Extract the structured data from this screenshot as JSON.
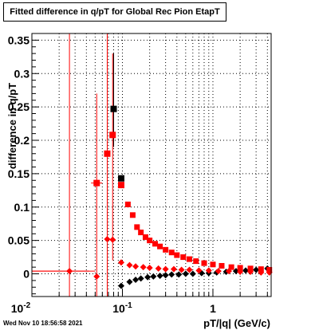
{
  "chart_data": {
    "type": "scatter",
    "title": "Fitted difference in q/pT for Global Rec Pion EtapT",
    "xlabel": "pT/|q| (GeV/c)",
    "ylabel": "difference in q/pT",
    "xscale": "log",
    "xlim": [
      0.01,
      4.4
    ],
    "ylim": [
      -0.034,
      0.36
    ],
    "grid": true,
    "x_tick_labels": [
      "10^-2",
      "10^-1",
      "1"
    ],
    "y_tick_labels": [
      "0",
      "0.05",
      "0.1",
      "0.15",
      "0.2",
      "0.25",
      "0.3",
      "0.35"
    ],
    "series": [
      {
        "marker": "square",
        "color": "#000000",
        "points": [
          {
            "x": 0.08,
            "y": 0.247
          },
          {
            "x": 0.097,
            "y": 0.143
          }
        ]
      },
      {
        "marker": "diamond",
        "color": "#000000",
        "points": [
          {
            "x": 0.097,
            "y": -0.018
          },
          {
            "x": 0.12,
            "y": -0.012
          },
          {
            "x": 0.14,
            "y": -0.009
          },
          {
            "x": 0.16,
            "y": -0.007
          },
          {
            "x": 0.19,
            "y": -0.005
          },
          {
            "x": 0.22,
            "y": -0.004
          },
          {
            "x": 0.26,
            "y": -0.003
          },
          {
            "x": 0.3,
            "y": -0.002
          },
          {
            "x": 0.35,
            "y": -0.001
          },
          {
            "x": 0.42,
            "y": -0.001
          },
          {
            "x": 0.5,
            "y": 0.0
          },
          {
            "x": 0.6,
            "y": 0.0
          },
          {
            "x": 0.75,
            "y": 0.001
          },
          {
            "x": 0.9,
            "y": 0.001
          },
          {
            "x": 1.1,
            "y": 0.002
          },
          {
            "x": 1.4,
            "y": 0.003
          },
          {
            "x": 1.8,
            "y": 0.004
          },
          {
            "x": 2.3,
            "y": 0.005
          },
          {
            "x": 3.0,
            "y": 0.006
          },
          {
            "x": 4.0,
            "y": 0.008
          }
        ]
      },
      {
        "marker": "square",
        "color": "#ff0000",
        "points": [
          {
            "x": 0.052,
            "y": 0.136
          },
          {
            "x": 0.068,
            "y": 0.18
          },
          {
            "x": 0.078,
            "y": 0.208
          },
          {
            "x": 0.097,
            "y": 0.133
          },
          {
            "x": 0.115,
            "y": 0.104
          },
          {
            "x": 0.13,
            "y": 0.088
          },
          {
            "x": 0.145,
            "y": 0.07
          },
          {
            "x": 0.16,
            "y": 0.062
          },
          {
            "x": 0.18,
            "y": 0.055
          },
          {
            "x": 0.2,
            "y": 0.05
          },
          {
            "x": 0.23,
            "y": 0.045
          },
          {
            "x": 0.26,
            "y": 0.041
          },
          {
            "x": 0.3,
            "y": 0.036
          },
          {
            "x": 0.35,
            "y": 0.032
          },
          {
            "x": 0.4,
            "y": 0.028
          },
          {
            "x": 0.47,
            "y": 0.025
          },
          {
            "x": 0.55,
            "y": 0.022
          },
          {
            "x": 0.65,
            "y": 0.019
          },
          {
            "x": 0.8,
            "y": 0.016
          },
          {
            "x": 1.0,
            "y": 0.014
          },
          {
            "x": 1.25,
            "y": 0.012
          },
          {
            "x": 1.6,
            "y": 0.01
          },
          {
            "x": 2.0,
            "y": 0.009
          },
          {
            "x": 2.6,
            "y": 0.008
          },
          {
            "x": 3.4,
            "y": 0.007
          },
          {
            "x": 4.2,
            "y": 0.006
          }
        ]
      },
      {
        "marker": "diamond",
        "color": "#ff0000",
        "points": [
          {
            "x": 0.026,
            "y": 0.004
          },
          {
            "x": 0.052,
            "y": -0.004
          },
          {
            "x": 0.068,
            "y": 0.052
          },
          {
            "x": 0.078,
            "y": 0.051
          },
          {
            "x": 0.097,
            "y": 0.017
          },
          {
            "x": 0.12,
            "y": 0.013
          },
          {
            "x": 0.14,
            "y": 0.011
          },
          {
            "x": 0.17,
            "y": 0.01
          },
          {
            "x": 0.2,
            "y": 0.009
          },
          {
            "x": 0.25,
            "y": 0.008
          },
          {
            "x": 0.3,
            "y": 0.007
          },
          {
            "x": 0.37,
            "y": 0.007
          },
          {
            "x": 0.45,
            "y": 0.006
          },
          {
            "x": 0.55,
            "y": 0.006
          },
          {
            "x": 0.7,
            "y": 0.005
          },
          {
            "x": 0.9,
            "y": 0.005
          },
          {
            "x": 1.15,
            "y": 0.004
          },
          {
            "x": 1.5,
            "y": 0.004
          },
          {
            "x": 2.0,
            "y": 0.003
          },
          {
            "x": 2.6,
            "y": 0.003
          },
          {
            "x": 3.4,
            "y": 0.002
          },
          {
            "x": 4.2,
            "y": 0.002
          }
        ]
      }
    ],
    "error_bars": [
      {
        "x": 0.026,
        "y_low": -0.034,
        "y_high": 0.36,
        "x_low": 0.01,
        "x_high": 0.043,
        "color": "#ff0000"
      },
      {
        "x": 0.052,
        "y_low": -0.034,
        "y_high": 0.27,
        "x_low": 0.045,
        "x_high": 0.06,
        "color": "#ff0000"
      },
      {
        "x": 0.068,
        "y_low": -0.034,
        "y_high": 0.36,
        "color": "#ff0000"
      },
      {
        "x": 0.078,
        "y_low": 0.02,
        "y_high": 0.33,
        "color": "#ff0000"
      },
      {
        "x": 0.08,
        "y_low": 0.19,
        "y_high": 0.33,
        "color": "#000000"
      }
    ]
  },
  "footer": {
    "timestamp": "Wed Nov 10 18:56:58 2021"
  }
}
